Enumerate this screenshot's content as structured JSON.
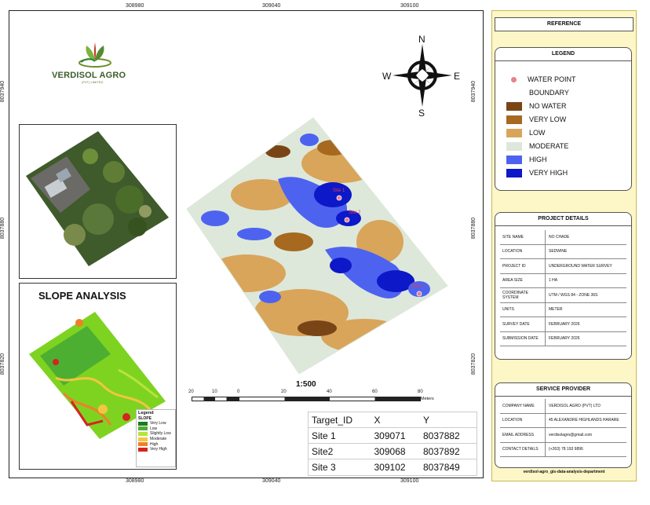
{
  "map": {
    "coords_top": [
      "308980",
      "309040",
      "309100"
    ],
    "coords_bottom": [
      "308980",
      "309040",
      "309100"
    ],
    "coords_left": [
      "8037940",
      "8037880",
      "8037820"
    ],
    "coords_right": [
      "8037940",
      "8037880",
      "8037820"
    ],
    "water_point_labels": [
      "Site 1",
      "Site 2",
      "Site 3"
    ]
  },
  "logo": {
    "name": "VERDISOL AGRO",
    "sub": "(PVT) LIMITED"
  },
  "slope": {
    "title": "SLOPE ANALYSIS",
    "legend_title": "Legend",
    "legend_sub": "SLOPE",
    "items": [
      {
        "label": "Very Low",
        "color": "#1e7a22"
      },
      {
        "label": "Low",
        "color": "#4caf32"
      },
      {
        "label": "Slightly Low",
        "color": "#b7e33a"
      },
      {
        "label": "Moderate",
        "color": "#f4c542"
      },
      {
        "label": "High",
        "color": "#f07f2c"
      },
      {
        "label": "Very High",
        "color": "#d6231f"
      }
    ]
  },
  "compass": {
    "n": "N",
    "s": "S",
    "e": "E",
    "w": "W"
  },
  "scale": {
    "title": "1:500",
    "ticks": [
      "20",
      "10",
      "0",
      "20",
      "40",
      "60",
      "80"
    ],
    "unit": "Meters"
  },
  "table": {
    "headers": [
      "Target_ID",
      "X",
      "Y"
    ],
    "rows": [
      [
        "Site 1",
        "309071",
        "8037882"
      ],
      [
        "Site2",
        "309068",
        "8037892"
      ],
      [
        "Site 3",
        "309102",
        "8037849"
      ]
    ]
  },
  "reference": {
    "title": "REFERENCE",
    "legend": {
      "title": "LEGEND",
      "items": [
        {
          "label": "WATER POINT",
          "type": "dot",
          "color": "#e8818a"
        },
        {
          "label": "BOUNDARY",
          "type": "none",
          "color": "#ffffff"
        },
        {
          "label": "NO WATER",
          "type": "swatch",
          "color": "#7a4516"
        },
        {
          "label": "VERY LOW",
          "type": "swatch",
          "color": "#a6691f"
        },
        {
          "label": "LOW",
          "type": "swatch",
          "color": "#d9a55a"
        },
        {
          "label": "MODERATE",
          "type": "swatch",
          "color": "#dde8da"
        },
        {
          "label": "HIGH",
          "type": "swatch",
          "color": "#4d63f0"
        },
        {
          "label": "VERY HIGH",
          "type": "swatch",
          "color": "#0d18c8"
        }
      ]
    },
    "project": {
      "title": "PROJECT DETAILS",
      "rows": [
        {
          "k": "SITE NAME",
          "v": "NO CHADE"
        },
        {
          "k": "LOCATION",
          "v": "SEDWINE"
        },
        {
          "k": "PROJECT ID",
          "v": "UNDERGROUND WATER SURVEY"
        },
        {
          "k": "AREA SIZE",
          "v": "1 HA"
        },
        {
          "k": "COORDINATE SYSTEM",
          "v": "UTM / WGS 84 - ZONE 36S"
        },
        {
          "k": "UNITS",
          "v": "METER"
        },
        {
          "k": "SURVEY DATE",
          "v": "FEBRUARY 2026"
        },
        {
          "k": "SUBMISSION DATE",
          "v": "FEBRUARY 2026"
        }
      ]
    },
    "provider": {
      "title": "SERVICE PROVIDER",
      "rows": [
        {
          "k": "COMPANY NAME",
          "v": "VERDISOL AGRO (PVT) LTD"
        },
        {
          "k": "LOCATION",
          "v": "45 ALEXANDRE HIGHLANDS HARARE"
        },
        {
          "k": "EMAIL ADDRESS",
          "v": "verdisolagro@gmail.com"
        },
        {
          "k": "CONTACT DETAILS",
          "v": "(+263) 78 193 9896"
        }
      ]
    },
    "footer": "verdisol-agro_gis-data-analysis-department"
  }
}
